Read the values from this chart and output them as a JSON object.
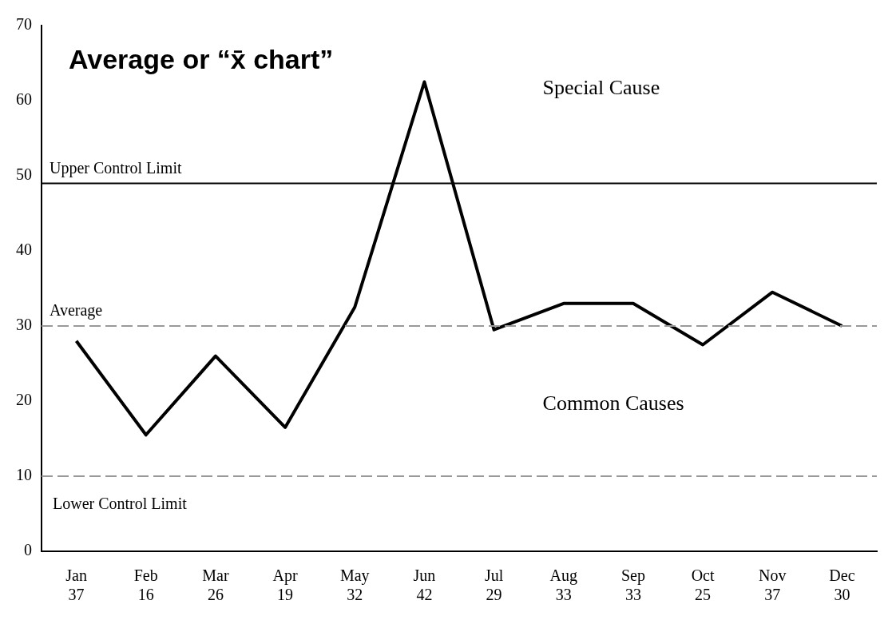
{
  "chart_data": {
    "type": "line",
    "title": "Average or “x̄ chart”",
    "categories": [
      "Jan\n37",
      "Feb\n16",
      "Mar\n26",
      "Apr\n19",
      "May\n32",
      "Jun\n42",
      "Jul\n29",
      "Aug\n33",
      "Sep\n33",
      "Oct\n25",
      "Nov\n37",
      "Dec\n30"
    ],
    "series": [
      {
        "color": "#000000",
        "values": [
          28,
          15.5,
          26,
          16.5,
          32.5,
          62.5,
          29.5,
          33,
          33,
          27.5,
          34.5,
          30
        ]
      }
    ],
    "ylim": [
      0,
      70
    ],
    "yticks": [
      0,
      10,
      20,
      30,
      40,
      50,
      60,
      70
    ],
    "grid": false,
    "legend": false,
    "marker": "none",
    "line_style": "solid",
    "ref_lines": [
      {
        "axis": "y",
        "value": 49,
        "label": "Upper Control Limit",
        "color": "#000000",
        "line_style": "solid"
      },
      {
        "axis": "y",
        "value": 30,
        "label": "Average",
        "color": "#999999",
        "line_style": "dashed"
      },
      {
        "axis": "y",
        "value": 10,
        "label": "Lower Control Limit",
        "color": "#999999",
        "line_style": "dashed"
      }
    ],
    "annotations": [
      "Special Cause",
      "Common Causes"
    ]
  }
}
